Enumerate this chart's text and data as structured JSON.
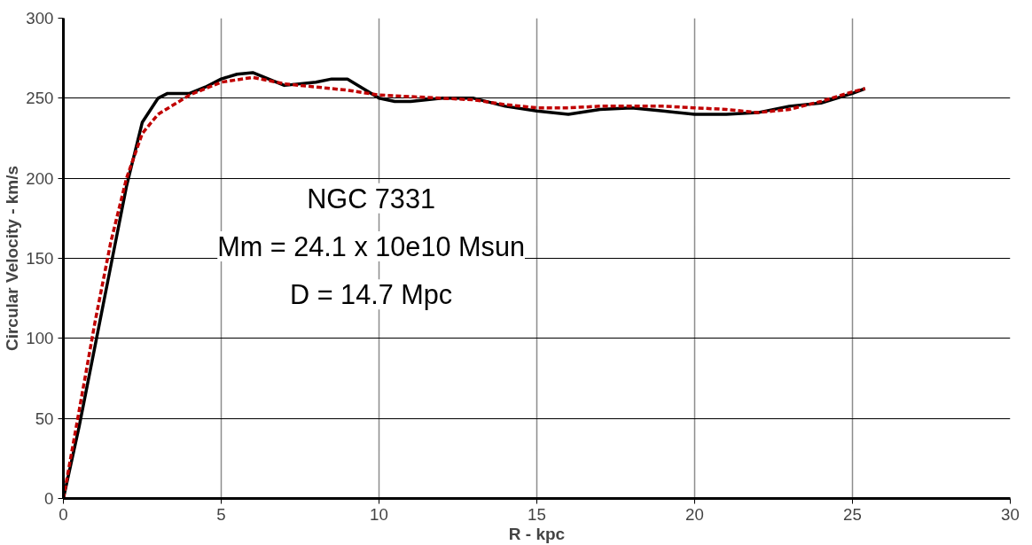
{
  "chart_data": {
    "type": "line",
    "xlabel": "R - kpc",
    "ylabel": "Circular Velocity - km/s",
    "annotations": [
      "NGC 7331",
      "Mm = 24.1 x 10e10 Msun",
      "D = 14.7 Mpc"
    ],
    "series": [
      {
        "color": "#000000",
        "line_style": "solid",
        "x": [
          0,
          0.5,
          1,
          1.5,
          2,
          2.5,
          3,
          3.3,
          4,
          4.5,
          5,
          5.5,
          6,
          6.5,
          7,
          8,
          8.5,
          9,
          9.5,
          10,
          10.5,
          11,
          12,
          13,
          14,
          15,
          16,
          17,
          18,
          19,
          20,
          21,
          22,
          23,
          24,
          25,
          25.4
        ],
        "values": [
          0,
          45,
          95,
          145,
          195,
          235,
          250,
          253,
          253,
          257,
          262,
          265,
          266,
          262,
          258,
          260,
          262,
          262,
          256,
          250,
          248,
          248,
          250,
          250,
          245,
          242,
          240,
          243,
          244,
          242,
          240,
          240,
          241,
          245,
          247,
          253,
          256
        ]
      },
      {
        "color": "#c00000",
        "line_style": "dashed",
        "x": [
          0,
          0.5,
          1,
          1.5,
          2,
          2.5,
          3,
          3.5,
          4,
          5,
          6,
          7,
          8,
          9,
          10,
          11,
          12,
          13,
          14,
          15,
          16,
          17,
          18,
          19,
          20,
          21,
          22,
          23,
          24,
          25,
          25.4
        ],
        "values": [
          0,
          55,
          110,
          160,
          200,
          228,
          240,
          246,
          252,
          260,
          263,
          259,
          257,
          255,
          252,
          251,
          250,
          249,
          246,
          244,
          244,
          245,
          245,
          245,
          244,
          243,
          241,
          243,
          248,
          254,
          256
        ]
      }
    ],
    "xlim": [
      0,
      30
    ],
    "xticks": [
      0,
      5,
      10,
      15,
      20,
      25,
      30
    ],
    "ylim": [
      0,
      300
    ],
    "yticks": [
      0,
      50,
      100,
      150,
      200,
      250,
      300
    ],
    "grid": true
  }
}
